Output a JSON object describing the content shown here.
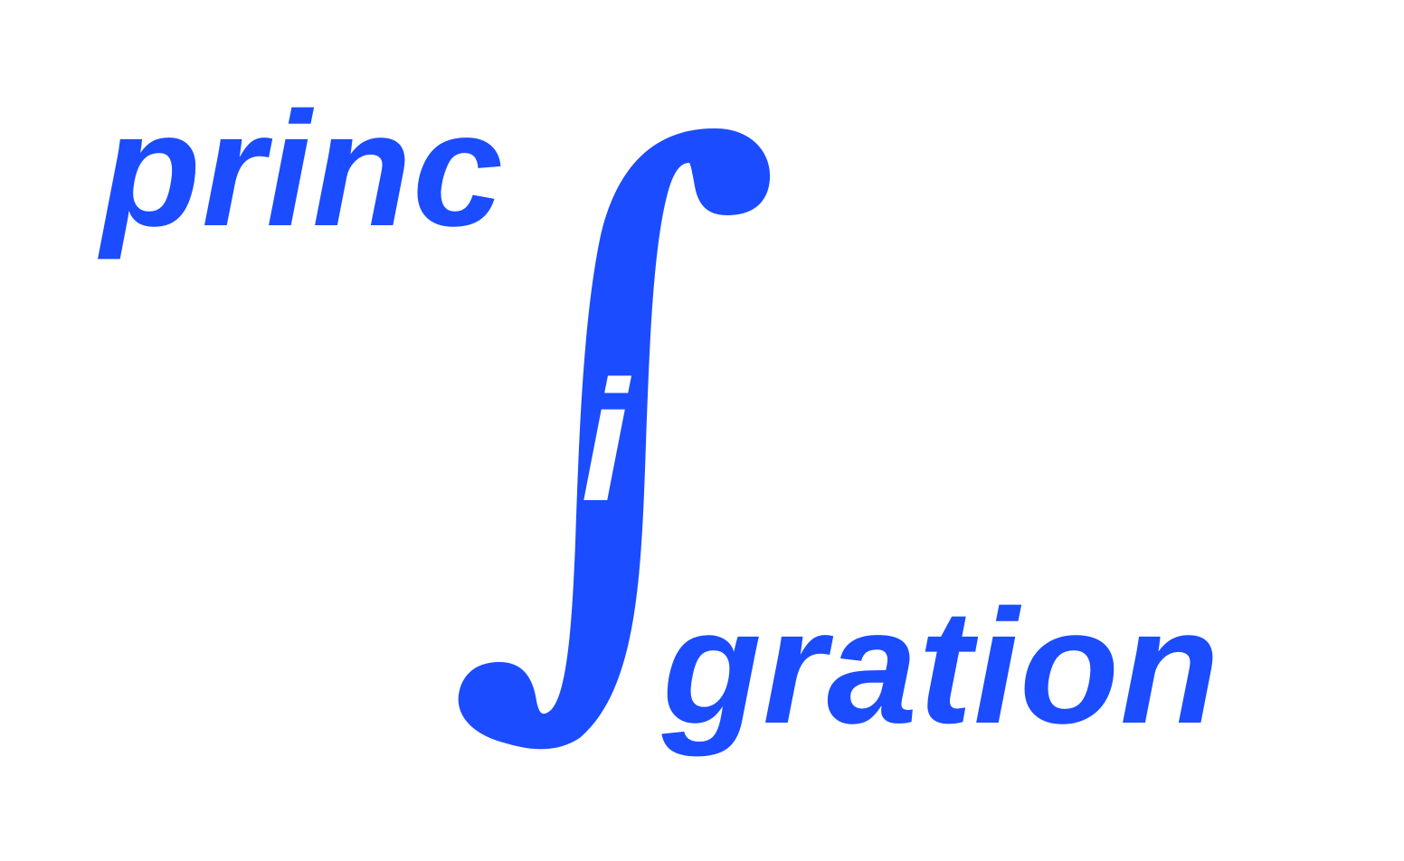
{
  "logo": {
    "word_before": "princ",
    "inner_letter": "i",
    "word_after": "gration",
    "symbol": "integral-sign",
    "colors": {
      "brand_blue": "#1b4cff",
      "background": "#ffffff",
      "inner_letter": "#ffffff"
    }
  }
}
